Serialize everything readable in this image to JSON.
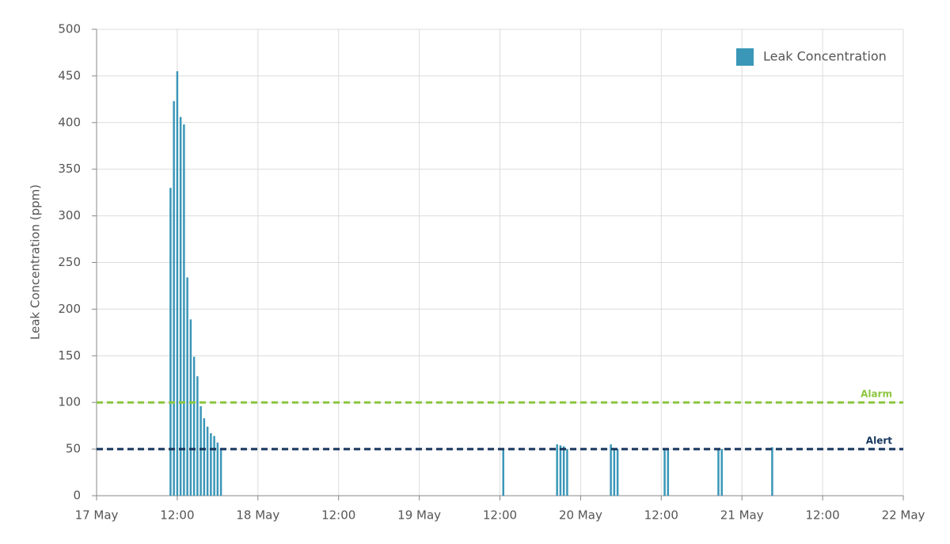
{
  "chart_data": {
    "type": "bar",
    "y_label": "Leak Concentration (ppm)",
    "series": [
      {
        "name": "Leak Concentration",
        "color": "#3a97b8",
        "x": [
          11,
          11.5,
          12,
          12.5,
          13,
          13.5,
          14,
          14.5,
          15,
          15.5,
          16,
          16.5,
          17,
          17.5,
          18,
          18.5,
          60.5,
          68.5,
          69,
          69.5,
          70,
          76.5,
          77,
          77.5,
          84.5,
          85,
          92.5,
          93,
          100.5
        ],
        "values": [
          330,
          423,
          455,
          406,
          398,
          234,
          189,
          149,
          128,
          96,
          83,
          74,
          67,
          64,
          57,
          50,
          50,
          55,
          54,
          53,
          50,
          55,
          50,
          50,
          50,
          50,
          50,
          50,
          52
        ]
      }
    ],
    "xlim": [
      0,
      120
    ],
    "xticks": [
      {
        "value": 0,
        "label": "17 May"
      },
      {
        "value": 12,
        "label": "12:00"
      },
      {
        "value": 24,
        "label": "18 May"
      },
      {
        "value": 36,
        "label": "12:00"
      },
      {
        "value": 48,
        "label": "19 May"
      },
      {
        "value": 60,
        "label": "12:00"
      },
      {
        "value": 72,
        "label": "20 May"
      },
      {
        "value": 84,
        "label": "12:00"
      },
      {
        "value": 96,
        "label": "21 May"
      },
      {
        "value": 108,
        "label": "12:00"
      },
      {
        "value": 120,
        "label": "22 May"
      }
    ],
    "ylim": [
      0,
      500
    ],
    "yticks": [
      0,
      50,
      100,
      150,
      200,
      250,
      300,
      350,
      400,
      450,
      500
    ],
    "grid": true,
    "legend": "top-right",
    "thresholds": [
      {
        "label": "Alarm",
        "value": 100,
        "color": "#8cc63f"
      },
      {
        "label": "Alert",
        "value": 50,
        "color": "#17365d"
      }
    ]
  }
}
